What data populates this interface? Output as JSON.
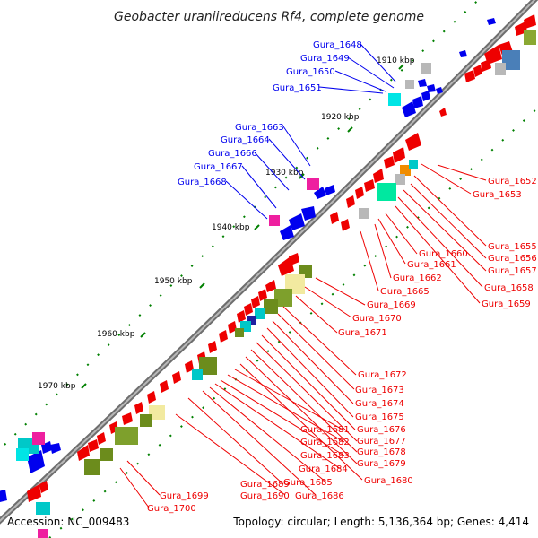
{
  "title": "Geobacter uraniireducens Rf4, complete genome",
  "footer": {
    "accession": "Accession: NC_009483",
    "summary": "Topology: circular; Length: 5,136,364 bp; Genes: 4,414"
  },
  "ticks": [
    "1910 kbp",
    "1920 kbp",
    "1930 kbp",
    "1940 kbp",
    "1950 kbp",
    "1960 kbp",
    "1970 kbp"
  ],
  "labels_blue": [
    "Gura_1648",
    "Gura_1649",
    "Gura_1650",
    "Gura_1651",
    "Gura_1663",
    "Gura_1664",
    "Gura_1666",
    "Gura_1667",
    "Gura_1668"
  ],
  "labels_red": [
    "Gura_1652",
    "Gura_1653",
    "Gura_1655",
    "Gura_1656",
    "Gura_1657",
    "Gura_1658",
    "Gura_1659",
    "Gura_1660",
    "Gura_1661",
    "Gura_1662",
    "Gura_1665",
    "Gura_1669",
    "Gura_1670",
    "Gura_1671",
    "Gura_1672",
    "Gura_1673",
    "Gura_1674",
    "Gura_1675",
    "Gura_1676",
    "Gura_1677",
    "Gura_1678",
    "Gura_1679",
    "Gura_1680",
    "Gura_1681",
    "Gura_1682",
    "Gura_1683",
    "Gura_1684",
    "Gura_1685",
    "Gura_1686",
    "Gura_1689",
    "Gura_1690",
    "Gura_1699",
    "Gura_1700"
  ],
  "colors": {
    "forward": "#0000ee",
    "reverse": "#ee0000",
    "backbone": "#808080",
    "tick": "#008000"
  }
}
